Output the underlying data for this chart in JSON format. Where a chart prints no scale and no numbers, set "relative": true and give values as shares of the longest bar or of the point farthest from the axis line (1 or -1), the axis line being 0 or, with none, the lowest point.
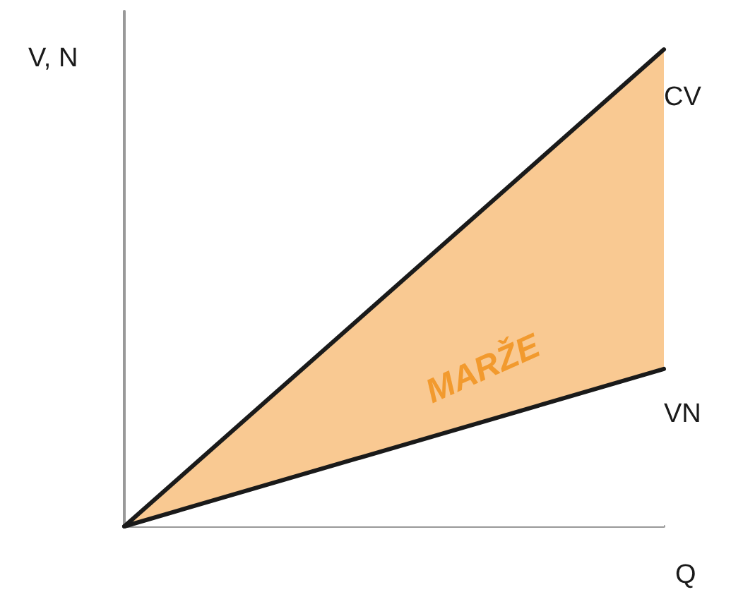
{
  "chart_data": {
    "type": "area",
    "relative": true,
    "xlabel": "Q",
    "ylabel": "V, N",
    "categories": [
      null,
      null
    ],
    "series": [
      {
        "name": "CV",
        "color": "#1a1a1a",
        "values": [
          0,
          1
        ]
      },
      {
        "name": "VN",
        "color": "#1a1a1a",
        "values": [
          0,
          0.33
        ]
      }
    ],
    "annotations": [
      "MARŽE"
    ],
    "grid": false,
    "legend": false,
    "marker": "none",
    "line_style": "solid"
  }
}
